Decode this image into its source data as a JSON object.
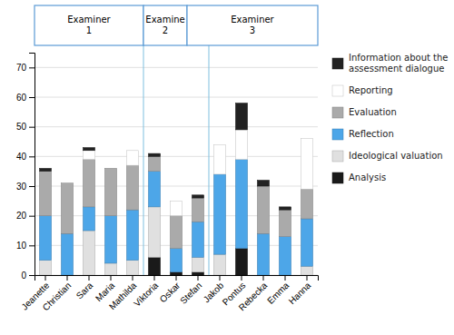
{
  "chart_data": {
    "type": "bar",
    "stacked": true,
    "categories": [
      "Jeanette",
      "Christian",
      "Sara",
      "Maria",
      "Mathilda",
      "Viktoria",
      "Oskar",
      "Stefan",
      "Jakob",
      "Pontus",
      "Rebecka",
      "Emma",
      "Hanna"
    ],
    "series": [
      {
        "name": "Analysis",
        "color": "#1a1a1a",
        "values": [
          0,
          0,
          0,
          0,
          0,
          6,
          1,
          1,
          0,
          9,
          0,
          0,
          0
        ]
      },
      {
        "name": "Ideological valuation",
        "color": "#e0e0e0",
        "values": [
          5,
          0,
          15,
          4,
          5,
          17,
          0,
          5,
          7,
          0,
          0,
          0,
          3
        ]
      },
      {
        "name": "Reflection",
        "color": "#4da6e8",
        "values": [
          15,
          14,
          8,
          16,
          17,
          12,
          8,
          12,
          27,
          30,
          14,
          13,
          16
        ]
      },
      {
        "name": "Evaluation",
        "color": "#aaaaaa",
        "values": [
          15,
          17,
          16,
          16,
          15,
          5,
          11,
          8,
          0,
          0,
          16,
          9,
          10
        ]
      },
      {
        "name": "Reporting",
        "color": "#ffffff",
        "values": [
          0,
          0,
          3,
          0,
          5,
          0,
          5,
          0,
          10,
          10,
          0,
          0,
          17
        ]
      },
      {
        "name": "Information about the\nassessment dialogue",
        "color": "#222222",
        "values": [
          1,
          0,
          1,
          0,
          0,
          1,
          0,
          1,
          0,
          9,
          2,
          1,
          0
        ]
      }
    ],
    "annotations": [
      {
        "type": "box",
        "text": "Examiner\n1",
        "categories": [
          "Jeanette",
          "Mathilda"
        ],
        "color": "#5a9ad5"
      },
      {
        "type": "box",
        "text": "Examine\n2",
        "categories": [
          "Viktoria",
          "Oskar"
        ],
        "color": "#5a9ad5"
      },
      {
        "type": "box",
        "text": "Examiner\n3",
        "categories": [
          "Stefan",
          "Hanna"
        ],
        "color": "#5a9ad5"
      },
      {
        "type": "line",
        "categories": [
          "Mathilda",
          "Viktoria"
        ],
        "color": "#7fbfdf"
      },
      {
        "type": "line",
        "categories": [
          "Stefan",
          "Jakob"
        ],
        "color": "#7fbfdf"
      }
    ],
    "ylim": [
      0,
      75
    ],
    "yticks": [
      0,
      10,
      20,
      30,
      40,
      50,
      60,
      70
    ],
    "grid": true,
    "legend": "right"
  }
}
